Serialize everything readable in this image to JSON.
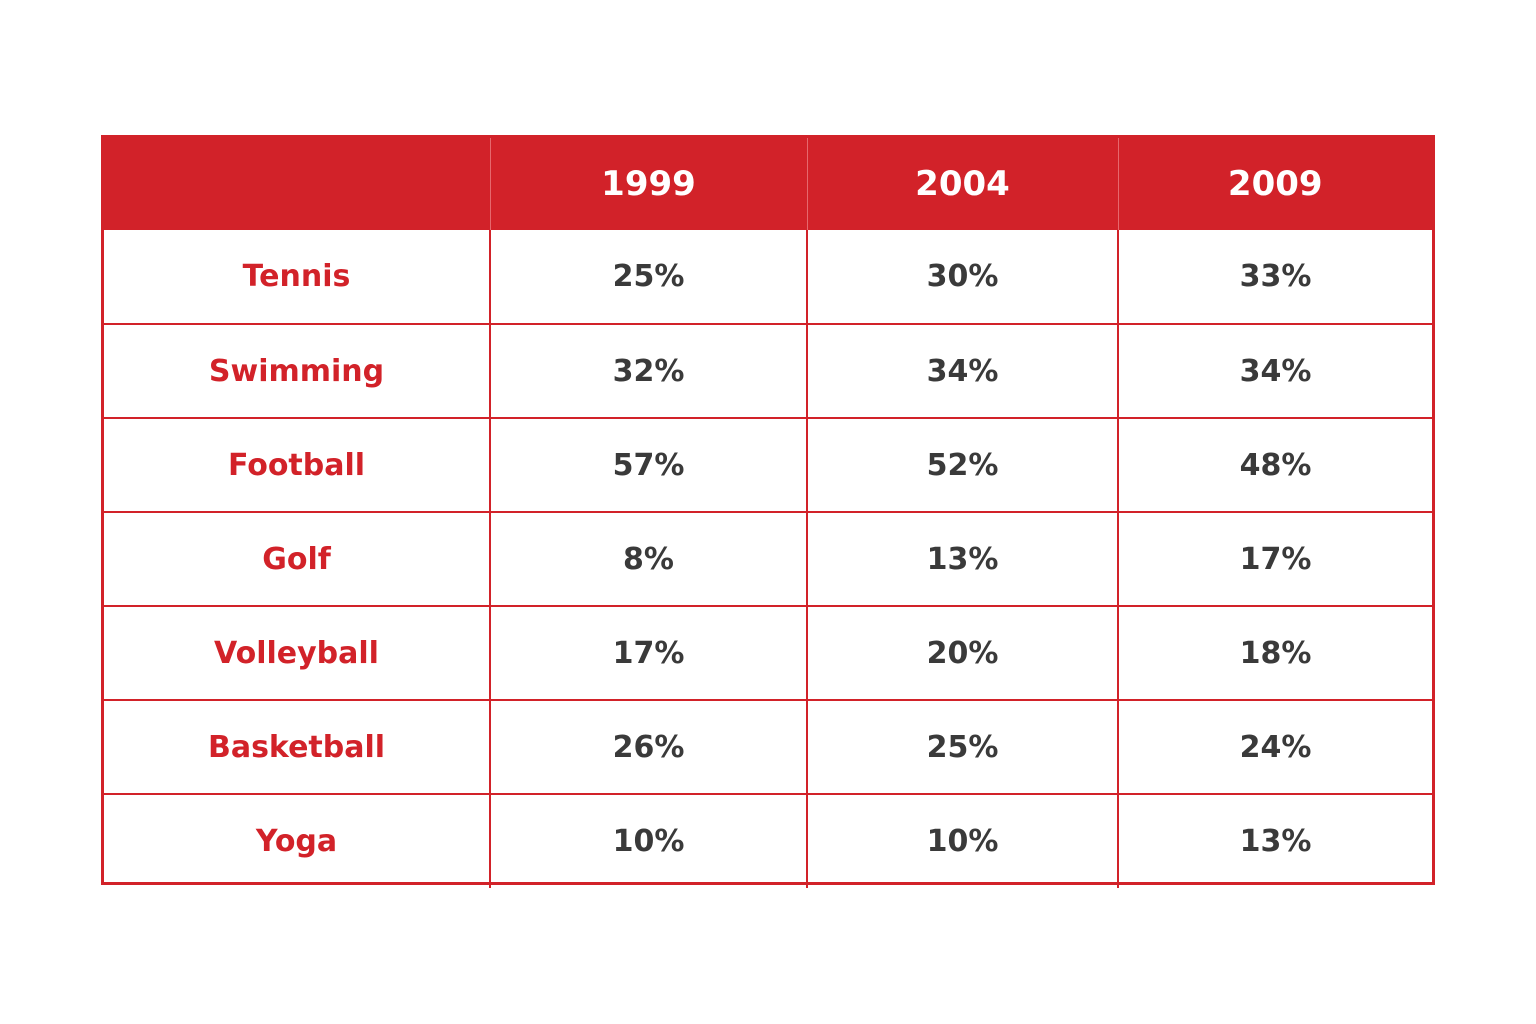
{
  "chart_data": {
    "type": "table",
    "columns": [
      "",
      "1999",
      "2004",
      "2009"
    ],
    "rows": [
      {
        "label": "Tennis",
        "values": [
          "25%",
          "30%",
          "33%"
        ]
      },
      {
        "label": "Swimming",
        "values": [
          "32%",
          "34%",
          "34%"
        ]
      },
      {
        "label": "Football",
        "values": [
          "57%",
          "52%",
          "48%"
        ]
      },
      {
        "label": "Golf",
        "values": [
          "8%",
          "13%",
          "17%"
        ]
      },
      {
        "label": "Volleyball",
        "values": [
          "17%",
          "20%",
          "18%"
        ]
      },
      {
        "label": "Basketball",
        "values": [
          "26%",
          "25%",
          "24%"
        ]
      },
      {
        "label": "Yoga",
        "values": [
          "10%",
          "10%",
          "13%"
        ]
      }
    ]
  },
  "colors": {
    "accent": "#d22229",
    "header_text": "#ffffff",
    "value_text": "#3a3a3a",
    "background": "#ffffff"
  }
}
